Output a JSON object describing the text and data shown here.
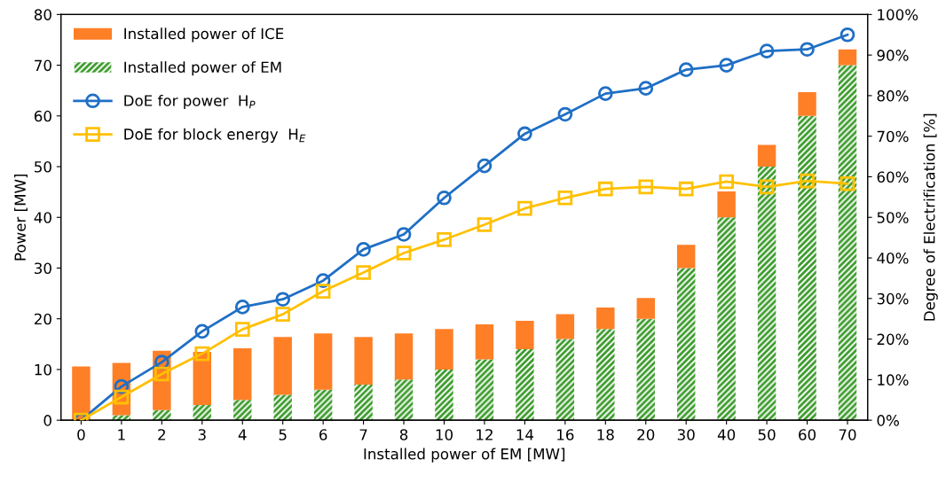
{
  "chart_data": {
    "type": "bar",
    "stacked": true,
    "xlabel": "Installed power of EM [MW]",
    "ylabel": "Power [MW]",
    "y2label": "Degree of Electrification [%]",
    "categories": [
      "0",
      "1",
      "2",
      "3",
      "4",
      "5",
      "6",
      "7",
      "8",
      "10",
      "12",
      "14",
      "16",
      "18",
      "20",
      "30",
      "40",
      "50",
      "60",
      "70"
    ],
    "series": [
      {
        "name": "Installed power of EM",
        "color": "#3a9a2a",
        "values": [
          0,
          1,
          2,
          3,
          4,
          5,
          6,
          7,
          8,
          10,
          12,
          14,
          16,
          18,
          20,
          30,
          40,
          50,
          60,
          70
        ]
      },
      {
        "name": "Installed power of ICE",
        "color": "#ff7f27",
        "values": [
          10.6,
          10.3,
          11.7,
          10.5,
          10.2,
          11.4,
          11.1,
          9.4,
          9.1,
          8.0,
          6.9,
          5.6,
          4.9,
          4.2,
          4.1,
          4.6,
          5.1,
          4.3,
          4.7,
          3.1
        ]
      },
      {
        "name": "DoE for power  H$_{P}$",
        "type": "line",
        "axis": "y2",
        "marker": "circle",
        "color": "#1f6fc5",
        "values": [
          0,
          8.3,
          14.3,
          21.9,
          27.9,
          29.8,
          34.4,
          42.1,
          45.8,
          54.8,
          62.7,
          70.6,
          75.4,
          80.5,
          81.8,
          86.4,
          87.5,
          91.0,
          91.4,
          95.0
        ]
      },
      {
        "name": "DoE for block energy  H$_{E}$",
        "type": "line",
        "axis": "y2",
        "marker": "square",
        "color": "#ffc000",
        "values": [
          0,
          5.7,
          11.4,
          16.4,
          22.4,
          26.1,
          31.8,
          36.4,
          41.2,
          44.5,
          48.2,
          52.2,
          54.8,
          57.0,
          57.5,
          57.0,
          58.8,
          57.5,
          59.0,
          58.3
        ]
      }
    ],
    "ylim": [
      0,
      80
    ],
    "yticks": [
      0,
      10,
      20,
      30,
      40,
      50,
      60,
      70,
      80
    ],
    "y2lim": [
      0,
      100
    ],
    "y2ticks": [
      {
        "value": 0,
        "label": "0%"
      },
      {
        "value": 10,
        "label": "10%"
      },
      {
        "value": 20,
        "label": "20%"
      },
      {
        "value": 30,
        "label": "30%"
      },
      {
        "value": 40,
        "label": "40%"
      },
      {
        "value": 50,
        "label": "50%"
      },
      {
        "value": 60,
        "label": "60%"
      },
      {
        "value": 70,
        "label": "70%"
      },
      {
        "value": 80,
        "label": "80%"
      },
      {
        "value": 90,
        "label": "90%"
      },
      {
        "value": 100,
        "label": "100%"
      }
    ],
    "legend": "top left",
    "grid": false
  }
}
